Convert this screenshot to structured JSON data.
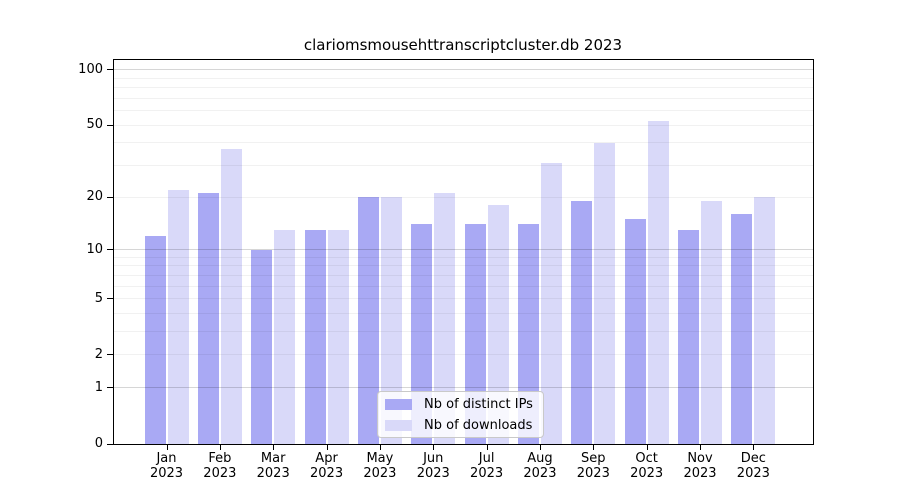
{
  "chart_data": {
    "type": "bar",
    "title": "clariomsmousehttranscriptcluster.db 2023",
    "categories": [
      "Jan 2023",
      "Feb 2023",
      "Mar 2023",
      "Apr 2023",
      "May 2023",
      "Jun 2023",
      "Jul 2023",
      "Aug 2023",
      "Sep 2023",
      "Oct 2023",
      "Nov 2023",
      "Dec 2023"
    ],
    "x_months": [
      "Jan",
      "Feb",
      "Mar",
      "Apr",
      "May",
      "Jun",
      "Jul",
      "Aug",
      "Sep",
      "Oct",
      "Nov",
      "Dec"
    ],
    "x_year": "2023",
    "series": [
      {
        "name": "Nb of distinct IPs",
        "color": "#a9a9f4",
        "values": [
          12,
          21,
          10,
          13,
          20,
          14,
          14,
          14,
          19,
          15,
          13,
          16
        ]
      },
      {
        "name": "Nb of downloads",
        "color": "#d9d9f9",
        "values": [
          22,
          37,
          13,
          13,
          20,
          21,
          18,
          31,
          40,
          53,
          19,
          20
        ]
      }
    ],
    "yscale": "log1p",
    "ylim": [
      0,
      113
    ],
    "ytick_values": [
      0,
      1,
      2,
      5,
      10,
      20,
      50,
      100
    ],
    "ytick_labels": [
      "0",
      "1",
      "2",
      "5",
      "10",
      "20",
      "50",
      "100"
    ],
    "major_gridlines": [
      1,
      10,
      100
    ],
    "minor_gridlines": [
      3,
      4,
      6,
      7,
      8,
      9,
      30,
      40,
      60,
      70,
      80,
      90
    ],
    "grid": true,
    "legend": {
      "position": "bottom-center",
      "entries": [
        "Nb of distinct IPs",
        "Nb of downloads"
      ]
    },
    "colors": {
      "frame": "#000000",
      "background": "#ffffff",
      "major_grid": "#d6d6d6",
      "minor_grid": "#efefef"
    }
  }
}
